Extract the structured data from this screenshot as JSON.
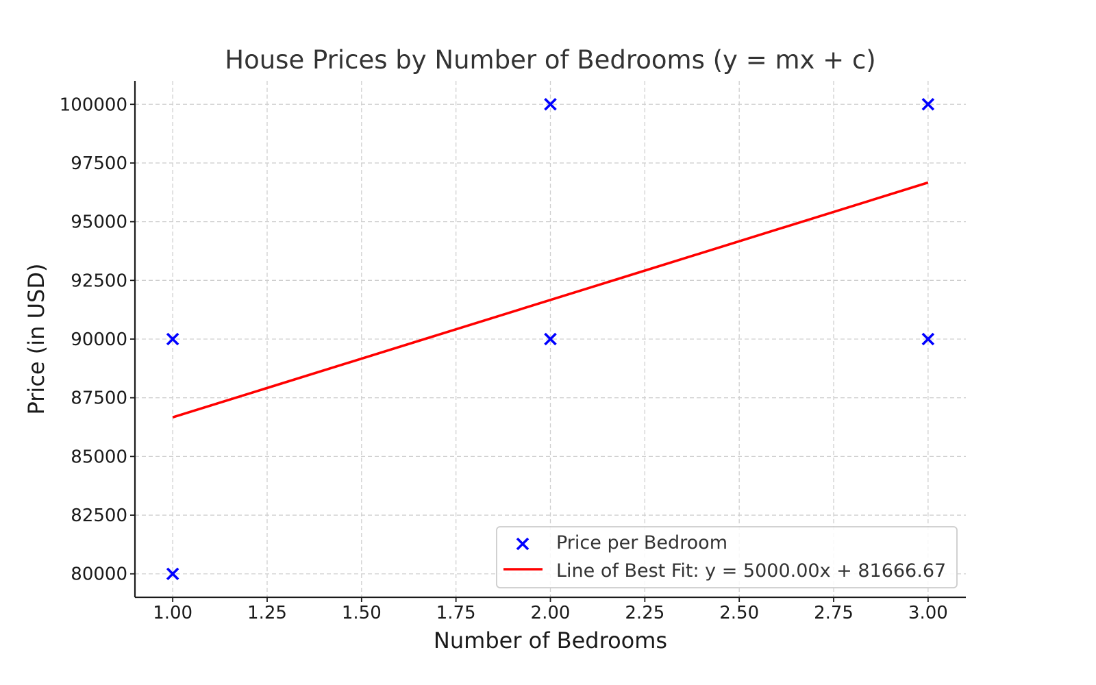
{
  "chart_data": {
    "type": "scatter",
    "title": "House Prices by Number of Bedrooms (y = mx + c)",
    "xlabel": "Number of Bedrooms",
    "ylabel": "Price (in USD)",
    "xlim": [
      0.9,
      3.1
    ],
    "ylim": [
      79000,
      101000
    ],
    "x_ticks": [
      1.0,
      1.25,
      1.5,
      1.75,
      2.0,
      2.25,
      2.5,
      2.75,
      3.0
    ],
    "x_tick_labels": [
      "1.00",
      "1.25",
      "1.50",
      "1.75",
      "2.00",
      "2.25",
      "2.50",
      "2.75",
      "3.00"
    ],
    "y_ticks": [
      80000,
      82500,
      85000,
      87500,
      90000,
      92500,
      95000,
      97500,
      100000
    ],
    "y_tick_labels": [
      "80000",
      "82500",
      "85000",
      "87500",
      "90000",
      "92500",
      "95000",
      "97500",
      "100000"
    ],
    "grid": true,
    "legend_position": "bottom-right",
    "series": [
      {
        "name": "Price per Bedroom",
        "kind": "scatter",
        "marker": "x",
        "color": "#0000ff",
        "points": [
          {
            "x": 1,
            "y": 80000
          },
          {
            "x": 1,
            "y": 90000
          },
          {
            "x": 2,
            "y": 90000
          },
          {
            "x": 2,
            "y": 100000
          },
          {
            "x": 3,
            "y": 90000
          },
          {
            "x": 3,
            "y": 100000
          }
        ]
      },
      {
        "name": "Line of Best Fit: y = 5000.00x + 81666.67",
        "kind": "line",
        "color": "#ff0000",
        "points": [
          {
            "x": 1,
            "y": 86666.67
          },
          {
            "x": 3,
            "y": 96666.67
          }
        ]
      }
    ]
  }
}
